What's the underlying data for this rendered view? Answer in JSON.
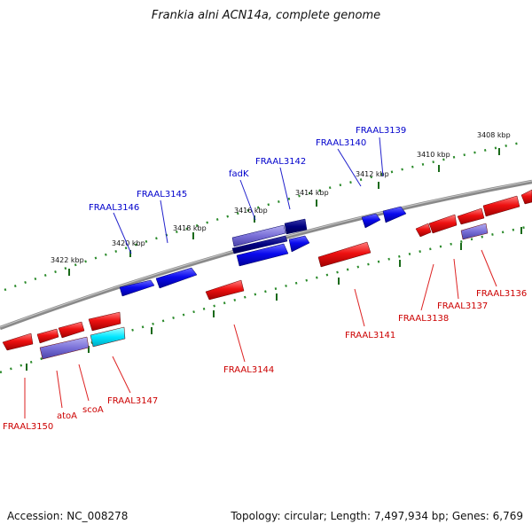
{
  "title": "Frankia alni ACN14a, complete genome",
  "footer": {
    "accession": "Accession: NC_008278",
    "summary": "Topology: circular; Length: 7,497,934 bp; Genes: 6,769"
  },
  "colors": {
    "forward_gene": "#0000ee",
    "reverse_gene": "#ee0000",
    "dark_gene": "#000080",
    "purple_gene": "#7a70d8",
    "cyan_gene": "#00e6ff",
    "backbone": "#888888",
    "ticks": "#228822",
    "forward_label": "#0000cc",
    "reverse_label": "#cc0000"
  },
  "scale_labels": [
    "3422 kbp",
    "3420 kbp",
    "3418 kbp",
    "3416 kbp",
    "3414 kbp",
    "3412 kbp",
    "3410 kbp",
    "3408 kbp"
  ],
  "forward_genes": [
    "FRAAL3146",
    "FRAAL3145",
    "fadK",
    "FRAAL3142",
    "FRAAL3140",
    "FRAAL3139"
  ],
  "reverse_genes": [
    "FRAAL3150",
    "atoA",
    "scoA",
    "FRAAL3147",
    "FRAAL3144",
    "FRAAL3141",
    "FRAAL3138",
    "FRAAL3137",
    "FRAAL3136"
  ]
}
